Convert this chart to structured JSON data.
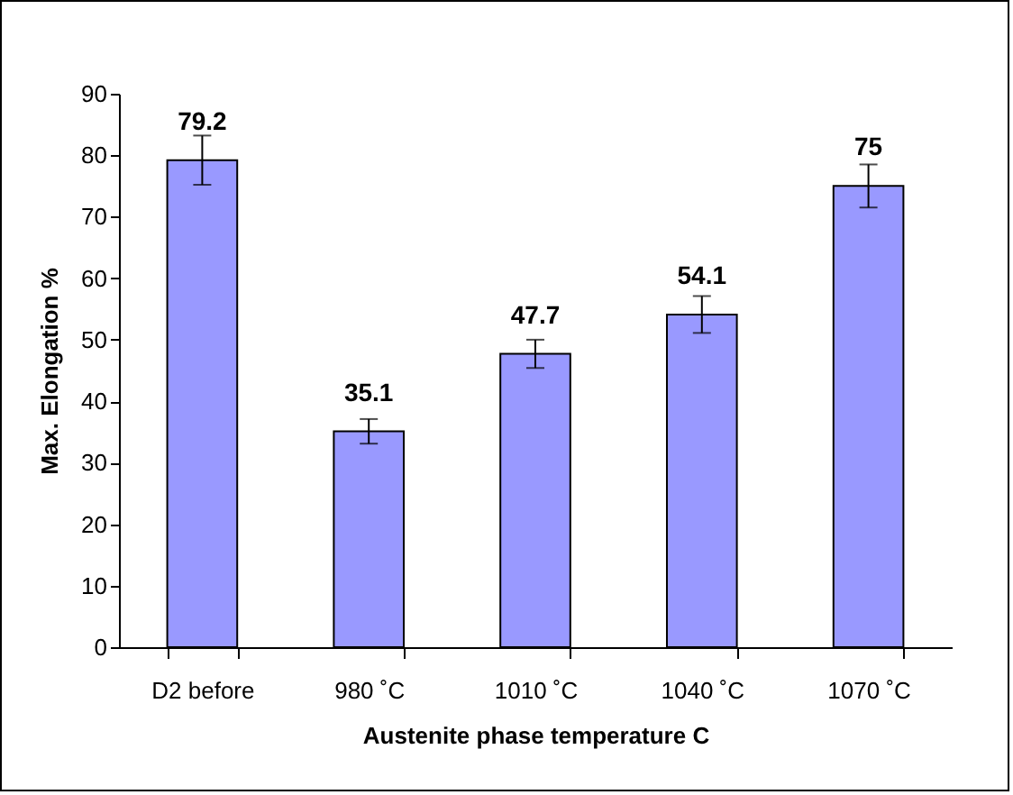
{
  "chart_data": {
    "type": "bar",
    "xlabel": "Austenite phase temperature C",
    "ylabel": "Max. Elongation %",
    "categories": [
      "D2 before",
      "980 ˚C",
      "1010 ˚C",
      "1040 ˚C",
      "1070 ˚C"
    ],
    "values": [
      79.2,
      35.1,
      47.7,
      54.1,
      75
    ],
    "errors": [
      4,
      2,
      2.3,
      3,
      3.5
    ],
    "color": "#9999ff",
    "ylim": [
      0,
      90
    ],
    "yticks": [
      0,
      10,
      20,
      30,
      40,
      50,
      60,
      70,
      80,
      90
    ],
    "data_labels": true,
    "grid": false
  }
}
